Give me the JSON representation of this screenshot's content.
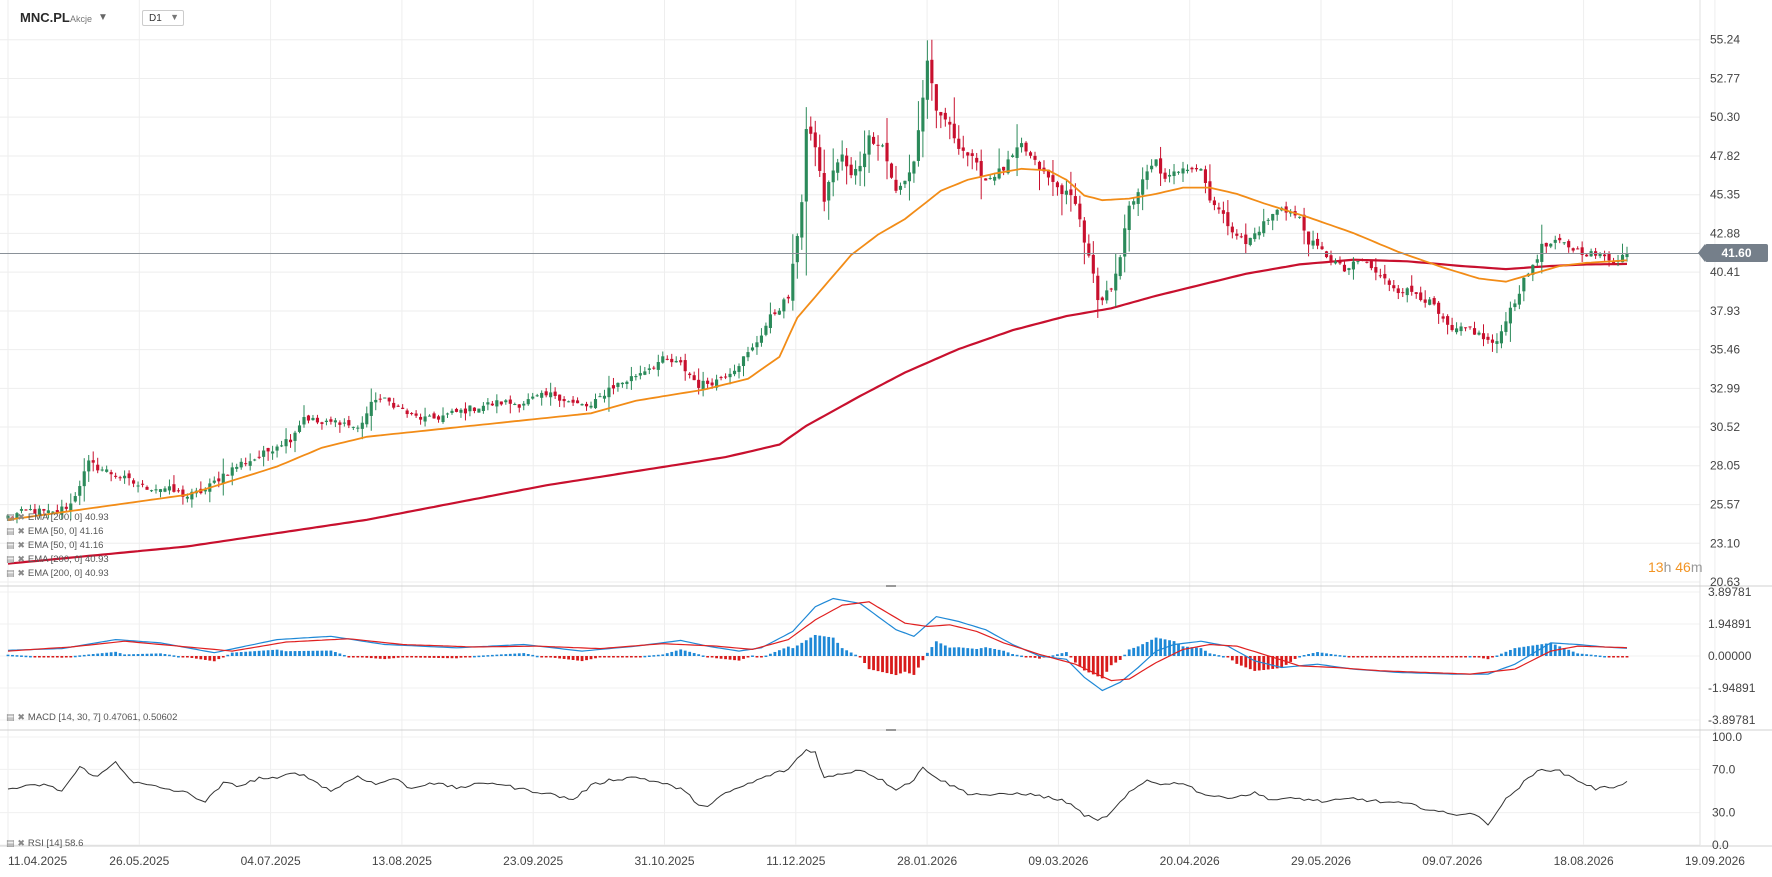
{
  "header": {
    "symbol": "MNC.PL",
    "instrument_type": "Akcje",
    "timeframe": "D1"
  },
  "last_price_label": "41.60",
  "countdown": {
    "hours": "13",
    "h_unit": "h",
    "minutes": "46",
    "m_unit": "m"
  },
  "legends": {
    "main": [
      "EMA [200, 0] 40.93",
      "EMA [50, 0] 41.16",
      "EMA [50, 0] 41.16",
      "EMA [200, 0] 40.93",
      "EMA [200, 0] 40.93"
    ],
    "macd": "MACD [14, 30, 7] 0.47061, 0.50602",
    "rsi": "RSI [14] 58.6"
  },
  "colors": {
    "up": "#2b8a5a",
    "down": "#c8102e",
    "ema50": "#f28c17",
    "ema200": "#c8102e",
    "macd_line": "#1e88d6",
    "signal_line": "#e02020",
    "hist_pos": "#1e88d6",
    "hist_neg": "#d81b1b",
    "rsi_line": "#333333",
    "last_price_line": "#8a9198"
  },
  "chart_data": [
    {
      "type": "candlestick",
      "x_tick_labels": [
        "11.04.2025",
        "26.05.2025",
        "04.07.2025",
        "13.08.2025",
        "23.09.2025",
        "31.10.2025",
        "11.12.2025",
        "28.01.2026",
        "09.03.2026",
        "20.04.2026",
        "29.05.2026",
        "09.07.2026",
        "18.08.2026",
        "19.09.2026"
      ],
      "y_tick_labels": [
        "55.24",
        "52.77",
        "50.30",
        "47.82",
        "45.35",
        "42.88",
        "40.41",
        "37.93",
        "35.46",
        "32.99",
        "30.52",
        "28.05",
        "25.57",
        "23.10",
        "20.63"
      ],
      "ylim": [
        20.63,
        56.5
      ],
      "last_price": 41.6,
      "close_anchors": [
        [
          0,
          24.8
        ],
        [
          5,
          25.2
        ],
        [
          10,
          25.0
        ],
        [
          14,
          25.6
        ],
        [
          18,
          28.2
        ],
        [
          22,
          27.7
        ],
        [
          26,
          27.2
        ],
        [
          30,
          26.7
        ],
        [
          35,
          26.6
        ],
        [
          40,
          26.1
        ],
        [
          44,
          26.5
        ],
        [
          48,
          27.5
        ],
        [
          52,
          28.2
        ],
        [
          56,
          28.6
        ],
        [
          60,
          29.4
        ],
        [
          63,
          29.8
        ],
        [
          66,
          31.2
        ],
        [
          70,
          30.7
        ],
        [
          74,
          30.9
        ],
        [
          78,
          30.4
        ],
        [
          82,
          32.4
        ],
        [
          86,
          32.0
        ],
        [
          90,
          31.2
        ],
        [
          94,
          31.0
        ],
        [
          98,
          31.3
        ],
        [
          102,
          31.6
        ],
        [
          106,
          31.9
        ],
        [
          110,
          32.1
        ],
        [
          114,
          32.0
        ],
        [
          118,
          32.4
        ],
        [
          122,
          32.6
        ],
        [
          126,
          32.0
        ],
        [
          130,
          31.8
        ],
        [
          134,
          33.0
        ],
        [
          138,
          33.5
        ],
        [
          142,
          34.2
        ],
        [
          146,
          34.8
        ],
        [
          150,
          34.5
        ],
        [
          154,
          33.2
        ],
        [
          158,
          33.5
        ],
        [
          162,
          34.3
        ],
        [
          166,
          35.5
        ],
        [
          170,
          37.5
        ],
        [
          174,
          38.8
        ],
        [
          175,
          40.7
        ],
        [
          177,
          45.0
        ],
        [
          178,
          49.5
        ],
        [
          180,
          48.5
        ],
        [
          182,
          45.0
        ],
        [
          184,
          47.0
        ],
        [
          186,
          47.8
        ],
        [
          188,
          46.5
        ],
        [
          190,
          47.3
        ],
        [
          192,
          49.0
        ],
        [
          195,
          48.5
        ],
        [
          198,
          45.5
        ],
        [
          200,
          46.2
        ],
        [
          202,
          47.5
        ],
        [
          204,
          51.5
        ],
        [
          205,
          54.0
        ],
        [
          207,
          50.5
        ],
        [
          209,
          50.2
        ],
        [
          212,
          48.5
        ],
        [
          215,
          47.6
        ],
        [
          218,
          46.3
        ],
        [
          222,
          47.0
        ],
        [
          226,
          48.5
        ],
        [
          230,
          47.0
        ],
        [
          234,
          45.8
        ],
        [
          238,
          45.0
        ],
        [
          240,
          42.4
        ],
        [
          242,
          40.2
        ],
        [
          243,
          38.4
        ],
        [
          244,
          38.6
        ],
        [
          246,
          39.5
        ],
        [
          248,
          41.5
        ],
        [
          250,
          44.5
        ],
        [
          252,
          45.6
        ],
        [
          254,
          46.7
        ],
        [
          256,
          47.5
        ],
        [
          258,
          46.2
        ],
        [
          262,
          47.2
        ],
        [
          266,
          47.0
        ],
        [
          268,
          45.2
        ],
        [
          272,
          43.5
        ],
        [
          276,
          42.2
        ],
        [
          280,
          43.5
        ],
        [
          284,
          44.6
        ],
        [
          288,
          43.8
        ],
        [
          290,
          42.4
        ],
        [
          294,
          41.5
        ],
        [
          298,
          40.5
        ],
        [
          302,
          41.2
        ],
        [
          306,
          40.1
        ],
        [
          310,
          39.3
        ],
        [
          314,
          39.1
        ],
        [
          318,
          38.2
        ],
        [
          320,
          37.2
        ],
        [
          322,
          36.6
        ],
        [
          326,
          36.8
        ],
        [
          330,
          36.0
        ],
        [
          332,
          35.8
        ],
        [
          334,
          37.5
        ],
        [
          336,
          38.6
        ],
        [
          338,
          39.8
        ],
        [
          340,
          40.9
        ],
        [
          342,
          42.0
        ],
        [
          346,
          42.3
        ],
        [
          350,
          41.8
        ],
        [
          354,
          41.5
        ],
        [
          358,
          41.2
        ],
        [
          361,
          41.6
        ]
      ],
      "ema50_anchors": [
        [
          0,
          24.6
        ],
        [
          20,
          25.4
        ],
        [
          40,
          26.2
        ],
        [
          60,
          28.0
        ],
        [
          70,
          29.2
        ],
        [
          80,
          29.9
        ],
        [
          100,
          30.5
        ],
        [
          120,
          31.1
        ],
        [
          130,
          31.4
        ],
        [
          140,
          32.2
        ],
        [
          155,
          32.9
        ],
        [
          165,
          33.6
        ],
        [
          172,
          35.0
        ],
        [
          176,
          37.5
        ],
        [
          182,
          39.5
        ],
        [
          188,
          41.5
        ],
        [
          194,
          42.8
        ],
        [
          200,
          43.8
        ],
        [
          204,
          44.7
        ],
        [
          208,
          45.6
        ],
        [
          214,
          46.3
        ],
        [
          220,
          46.7
        ],
        [
          226,
          47.0
        ],
        [
          232,
          46.9
        ],
        [
          236,
          46.3
        ],
        [
          240,
          45.3
        ],
        [
          244,
          45.0
        ],
        [
          250,
          45.1
        ],
        [
          256,
          45.4
        ],
        [
          262,
          45.8
        ],
        [
          268,
          45.8
        ],
        [
          274,
          45.4
        ],
        [
          280,
          44.8
        ],
        [
          290,
          43.9
        ],
        [
          300,
          42.9
        ],
        [
          310,
          41.7
        ],
        [
          320,
          40.7
        ],
        [
          328,
          40.0
        ],
        [
          334,
          39.8
        ],
        [
          340,
          40.3
        ],
        [
          346,
          40.8
        ],
        [
          352,
          41.0
        ],
        [
          361,
          41.16
        ]
      ],
      "ema200_anchors": [
        [
          0,
          21.8
        ],
        [
          40,
          22.9
        ],
        [
          80,
          24.6
        ],
        [
          120,
          26.8
        ],
        [
          160,
          28.6
        ],
        [
          172,
          29.4
        ],
        [
          178,
          30.6
        ],
        [
          190,
          32.5
        ],
        [
          200,
          34.0
        ],
        [
          212,
          35.5
        ],
        [
          224,
          36.7
        ],
        [
          236,
          37.6
        ],
        [
          246,
          38.1
        ],
        [
          256,
          38.9
        ],
        [
          266,
          39.6
        ],
        [
          276,
          40.3
        ],
        [
          288,
          40.9
        ],
        [
          300,
          41.2
        ],
        [
          312,
          41.1
        ],
        [
          324,
          40.8
        ],
        [
          334,
          40.6
        ],
        [
          344,
          40.8
        ],
        [
          352,
          40.9
        ],
        [
          361,
          40.93
        ]
      ]
    },
    {
      "type": "line",
      "name": "MACD",
      "y_tick_labels": [
        "3.89781",
        "1.94891",
        "0.00000",
        "-1.94891",
        "-3.89781"
      ],
      "ylim": [
        -3.89781,
        3.89781
      ],
      "macd_anchors": [
        [
          0,
          0.35
        ],
        [
          12,
          0.45
        ],
        [
          24,
          1.0
        ],
        [
          34,
          0.8
        ],
        [
          46,
          0.2
        ],
        [
          60,
          1.0
        ],
        [
          72,
          1.2
        ],
        [
          84,
          0.7
        ],
        [
          100,
          0.5
        ],
        [
          115,
          0.7
        ],
        [
          128,
          0.3
        ],
        [
          140,
          0.6
        ],
        [
          150,
          0.95
        ],
        [
          156,
          0.6
        ],
        [
          163,
          0.3
        ],
        [
          168,
          0.5
        ],
        [
          175,
          1.5
        ],
        [
          180,
          3.0
        ],
        [
          184,
          3.5
        ],
        [
          190,
          3.2
        ],
        [
          198,
          1.6
        ],
        [
          202,
          1.2
        ],
        [
          207,
          2.4
        ],
        [
          212,
          2.1
        ],
        [
          218,
          1.6
        ],
        [
          224,
          0.7
        ],
        [
          230,
          0.0
        ],
        [
          236,
          -0.2
        ],
        [
          240,
          -1.3
        ],
        [
          244,
          -2.1
        ],
        [
          248,
          -1.6
        ],
        [
          252,
          -0.7
        ],
        [
          256,
          0.3
        ],
        [
          260,
          0.7
        ],
        [
          266,
          0.9
        ],
        [
          272,
          0.6
        ],
        [
          278,
          -0.3
        ],
        [
          284,
          -0.7
        ],
        [
          292,
          -0.5
        ],
        [
          300,
          -0.8
        ],
        [
          310,
          -1.0
        ],
        [
          322,
          -1.1
        ],
        [
          330,
          -1.1
        ],
        [
          336,
          -0.5
        ],
        [
          344,
          0.8
        ],
        [
          350,
          0.7
        ],
        [
          356,
          0.55
        ],
        [
          361,
          0.47061
        ]
      ],
      "signal_anchors": [
        [
          0,
          0.3
        ],
        [
          14,
          0.55
        ],
        [
          26,
          0.9
        ],
        [
          38,
          0.6
        ],
        [
          50,
          0.3
        ],
        [
          62,
          0.85
        ],
        [
          76,
          1.05
        ],
        [
          88,
          0.7
        ],
        [
          104,
          0.55
        ],
        [
          118,
          0.6
        ],
        [
          132,
          0.45
        ],
        [
          146,
          0.75
        ],
        [
          158,
          0.6
        ],
        [
          166,
          0.4
        ],
        [
          174,
          1.0
        ],
        [
          180,
          2.2
        ],
        [
          186,
          3.1
        ],
        [
          192,
          3.3
        ],
        [
          200,
          2.0
        ],
        [
          205,
          1.8
        ],
        [
          210,
          1.9
        ],
        [
          216,
          1.5
        ],
        [
          222,
          0.8
        ],
        [
          230,
          0.1
        ],
        [
          238,
          -0.5
        ],
        [
          246,
          -1.5
        ],
        [
          250,
          -1.4
        ],
        [
          256,
          -0.4
        ],
        [
          262,
          0.4
        ],
        [
          268,
          0.7
        ],
        [
          274,
          0.6
        ],
        [
          280,
          0.1
        ],
        [
          288,
          -0.6
        ],
        [
          296,
          -0.7
        ],
        [
          306,
          -0.9
        ],
        [
          316,
          -1.0
        ],
        [
          326,
          -1.1
        ],
        [
          336,
          -0.8
        ],
        [
          344,
          0.3
        ],
        [
          350,
          0.6
        ],
        [
          356,
          0.55
        ],
        [
          361,
          0.50602
        ]
      ]
    },
    {
      "type": "line",
      "name": "RSI",
      "y_tick_labels": [
        "100.0",
        "70.0",
        "30.0",
        "0.0"
      ],
      "ylim": [
        0,
        100
      ],
      "rsi_anchors": [
        [
          0,
          52
        ],
        [
          8,
          56
        ],
        [
          12,
          50
        ],
        [
          16,
          72
        ],
        [
          20,
          63
        ],
        [
          24,
          77
        ],
        [
          28,
          58
        ],
        [
          34,
          53
        ],
        [
          40,
          48
        ],
        [
          44,
          40
        ],
        [
          48,
          57
        ],
        [
          52,
          55
        ],
        [
          56,
          62
        ],
        [
          60,
          61
        ],
        [
          64,
          68
        ],
        [
          68,
          60
        ],
        [
          72,
          50
        ],
        [
          78,
          64
        ],
        [
          82,
          56
        ],
        [
          86,
          62
        ],
        [
          90,
          52
        ],
        [
          94,
          58
        ],
        [
          100,
          53
        ],
        [
          108,
          58
        ],
        [
          114,
          52
        ],
        [
          120,
          48
        ],
        [
          126,
          42
        ],
        [
          130,
          55
        ],
        [
          134,
          60
        ],
        [
          140,
          63
        ],
        [
          146,
          57
        ],
        [
          150,
          52
        ],
        [
          154,
          38
        ],
        [
          156,
          35
        ],
        [
          160,
          48
        ],
        [
          166,
          58
        ],
        [
          170,
          65
        ],
        [
          174,
          70
        ],
        [
          176,
          80
        ],
        [
          178,
          88
        ],
        [
          180,
          86
        ],
        [
          182,
          62
        ],
        [
          186,
          66
        ],
        [
          190,
          70
        ],
        [
          194,
          62
        ],
        [
          198,
          52
        ],
        [
          202,
          60
        ],
        [
          204,
          72
        ],
        [
          208,
          60
        ],
        [
          214,
          48
        ],
        [
          220,
          46
        ],
        [
          226,
          48
        ],
        [
          232,
          44
        ],
        [
          236,
          40
        ],
        [
          240,
          28
        ],
        [
          243,
          22
        ],
        [
          246,
          30
        ],
        [
          250,
          48
        ],
        [
          254,
          60
        ],
        [
          258,
          56
        ],
        [
          262,
          58
        ],
        [
          266,
          48
        ],
        [
          270,
          44
        ],
        [
          274,
          45
        ],
        [
          278,
          48
        ],
        [
          282,
          42
        ],
        [
          288,
          43
        ],
        [
          294,
          40
        ],
        [
          300,
          43
        ],
        [
          306,
          40
        ],
        [
          312,
          38
        ],
        [
          318,
          32
        ],
        [
          322,
          28
        ],
        [
          326,
          30
        ],
        [
          330,
          20
        ],
        [
          334,
          42
        ],
        [
          338,
          58
        ],
        [
          342,
          71
        ],
        [
          346,
          68
        ],
        [
          350,
          60
        ],
        [
          354,
          52
        ],
        [
          358,
          54
        ],
        [
          361,
          58.6
        ]
      ]
    }
  ]
}
